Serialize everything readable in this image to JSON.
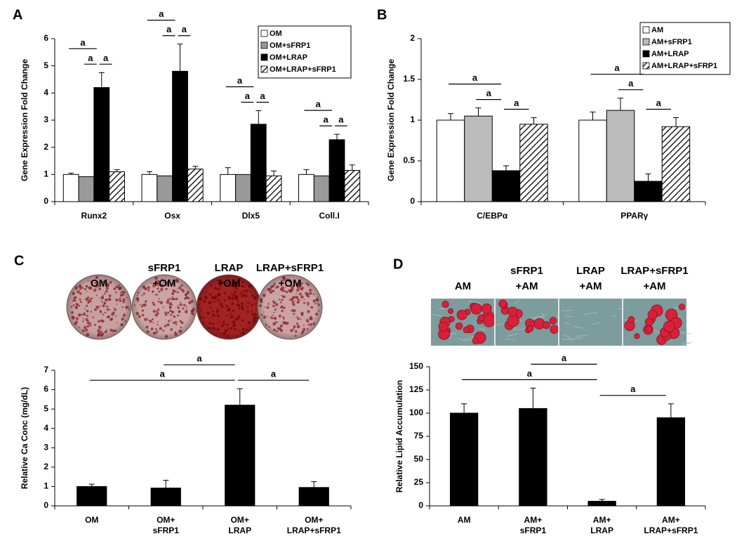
{
  "chart_data": [
    {
      "type": "bar",
      "panel": "A",
      "ylabel": "Gene Expression Fold Change",
      "categories": [
        "Runx2",
        "Osx",
        "Dlx5",
        "Coll.I"
      ],
      "series": [
        {
          "name": "OM",
          "color": "#ffffff",
          "values": [
            1.0,
            1.0,
            1.0,
            1.0
          ],
          "errors": [
            0.05,
            0.1,
            0.25,
            0.18
          ]
        },
        {
          "name": "OM+sFRP1",
          "color": "#999999",
          "values": [
            0.92,
            0.95,
            1.0,
            0.95
          ],
          "errors": [
            null,
            null,
            null,
            null
          ]
        },
        {
          "name": "OM+LRAP",
          "color": "#000000",
          "values": [
            4.2,
            4.8,
            2.85,
            2.28
          ],
          "errors": [
            0.55,
            1.0,
            0.5,
            0.2
          ]
        },
        {
          "name": "OM+LRAP+sFRP1",
          "color": "#ffffff",
          "pattern": "hatch",
          "values": [
            1.1,
            1.2,
            0.95,
            1.15
          ],
          "errors": [
            0.08,
            0.1,
            0.18,
            0.2
          ]
        }
      ],
      "ylim": [
        0,
        6
      ],
      "yticks": [
        0,
        1,
        2,
        3,
        4,
        5,
        6
      ],
      "legend": "top-right",
      "significance": [
        {
          "label": "a",
          "category": 0,
          "series": [
            1,
            2
          ]
        },
        {
          "label": "a",
          "category": 0,
          "series": [
            2,
            3
          ]
        },
        {
          "label": "a",
          "category": 0,
          "series": [
            0,
            2
          ]
        },
        {
          "label": "a",
          "category": 1,
          "series": [
            1,
            2
          ]
        },
        {
          "label": "a",
          "category": 1,
          "series": [
            2,
            3
          ]
        },
        {
          "label": "a",
          "category": 1,
          "series": [
            0,
            2
          ]
        },
        {
          "label": "a",
          "category": 2,
          "series": [
            1,
            2
          ]
        },
        {
          "label": "a",
          "category": 2,
          "series": [
            2,
            3
          ]
        },
        {
          "label": "a",
          "category": 2,
          "series": [
            0,
            2
          ]
        },
        {
          "label": "a",
          "category": 3,
          "series": [
            1,
            2
          ]
        },
        {
          "label": "a",
          "category": 3,
          "series": [
            2,
            3
          ]
        },
        {
          "label": "a",
          "category": 3,
          "series": [
            0,
            2
          ]
        }
      ]
    },
    {
      "type": "bar",
      "panel": "B",
      "ylabel": "Gene Expression Fold Change",
      "categories": [
        "C/EBPα",
        "PPARγ"
      ],
      "series": [
        {
          "name": "AM",
          "color": "#ffffff",
          "values": [
            1.0,
            1.0
          ],
          "errors": [
            0.08,
            0.1
          ]
        },
        {
          "name": "AM+sFRP1",
          "color": "#bbbbbb",
          "values": [
            1.05,
            1.12
          ],
          "errors": [
            0.1,
            0.15
          ]
        },
        {
          "name": "AM+LRAP",
          "color": "#000000",
          "values": [
            0.38,
            0.25
          ],
          "errors": [
            0.06,
            0.09
          ]
        },
        {
          "name": "AM+LRAP+sFRP1",
          "color": "#ffffff",
          "pattern": "hatch",
          "values": [
            0.95,
            0.92
          ],
          "errors": [
            0.08,
            0.11
          ]
        }
      ],
      "ylim": [
        0,
        2
      ],
      "yticks": [
        0,
        0.5,
        1,
        1.5,
        2
      ],
      "legend": "top-right",
      "significance": [
        {
          "label": "a",
          "category": 0,
          "series": [
            1,
            2
          ]
        },
        {
          "label": "a",
          "category": 0,
          "series": [
            2,
            3
          ]
        },
        {
          "label": "a",
          "category": 0,
          "series": [
            0,
            2
          ]
        },
        {
          "label": "a",
          "category": 1,
          "series": [
            1,
            2
          ]
        },
        {
          "label": "a",
          "category": 1,
          "series": [
            2,
            3
          ]
        },
        {
          "label": "a",
          "category": 1,
          "series": [
            0,
            2
          ]
        }
      ]
    },
    {
      "type": "bar",
      "panel": "C",
      "ylabel": "Relative Ca Conc (mg/dL)",
      "image_labels": [
        [
          "OM"
        ],
        [
          "sFRP1",
          "+OM"
        ],
        [
          "LRAP",
          "+OM"
        ],
        [
          "LRAP+sFRP1",
          "+OM"
        ]
      ],
      "categories": [
        [
          "OM"
        ],
        [
          "OM+",
          "sFRP1"
        ],
        [
          "OM+",
          "LRAP"
        ],
        [
          "OM+",
          "LRAP+sFRP1"
        ]
      ],
      "values": [
        1.0,
        0.92,
        5.2,
        0.95
      ],
      "errors": [
        0.12,
        0.4,
        0.85,
        0.3
      ],
      "color": "#000000",
      "ylim": [
        0,
        7
      ],
      "yticks": [
        0,
        1,
        2,
        3,
        4,
        5,
        6,
        7
      ],
      "significance": [
        {
          "label": "a",
          "categories": [
            0,
            2
          ]
        },
        {
          "label": "a",
          "categories": [
            1,
            2
          ]
        },
        {
          "label": "a",
          "categories": [
            2,
            3
          ]
        }
      ]
    },
    {
      "type": "bar",
      "panel": "D",
      "ylabel": "Relative Lipid Accumulation",
      "image_labels": [
        [
          "AM"
        ],
        [
          "sFRP1",
          "+AM"
        ],
        [
          "LRAP",
          "+AM"
        ],
        [
          "LRAP+sFRP1",
          "+AM"
        ]
      ],
      "categories": [
        [
          "AM"
        ],
        [
          "AM+",
          "sFRP1"
        ],
        [
          "AM+",
          "LRAP"
        ],
        [
          "AM+",
          "LRAP+sFRP1"
        ]
      ],
      "values": [
        100,
        105,
        5,
        95
      ],
      "errors": [
        10,
        22,
        2,
        15
      ],
      "color": "#000000",
      "ylim": [
        0,
        150
      ],
      "yticks": [
        0,
        25,
        50,
        75,
        100,
        125,
        150
      ],
      "significance": [
        {
          "label": "a",
          "categories": [
            0,
            2
          ]
        },
        {
          "label": "a",
          "categories": [
            1,
            2
          ]
        },
        {
          "label": "a",
          "categories": [
            2,
            3
          ]
        }
      ]
    }
  ]
}
